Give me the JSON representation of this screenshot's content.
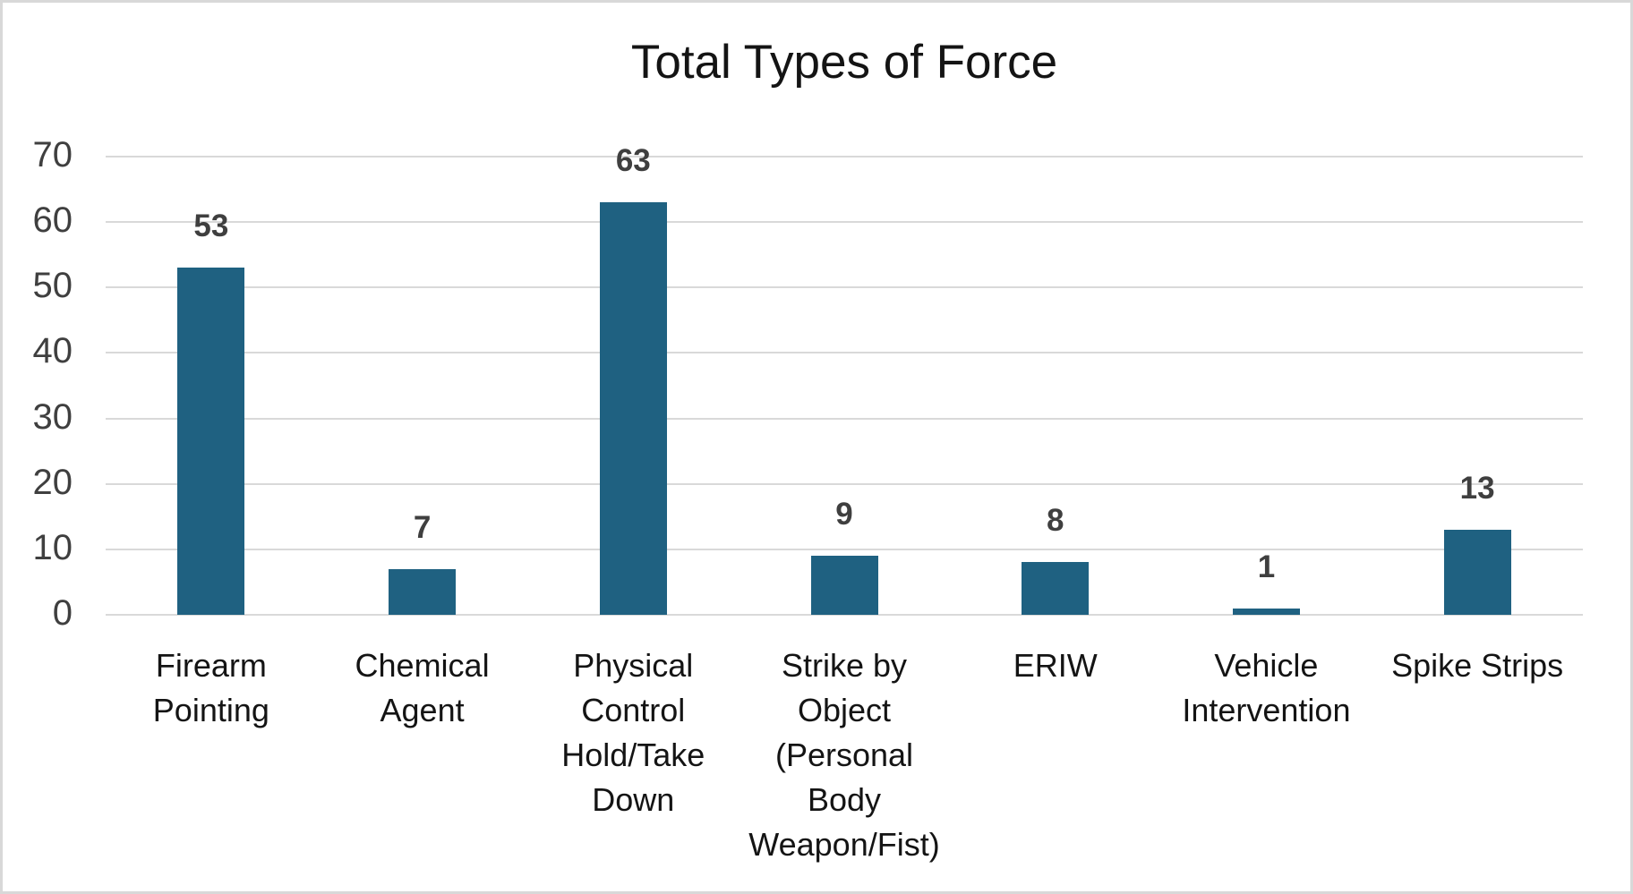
{
  "chart_data": {
    "type": "bar",
    "title": "Total Types of Force",
    "categories": [
      "Firearm Pointing",
      "Chemical Agent",
      "Physical Control Hold/Take Down",
      "Strike by Object (Personal Body Weapon/Fist)",
      "ERIW",
      "Vehicle Intervention",
      "Spike Strips"
    ],
    "category_display_lines": [
      "Firearm\nPointing",
      "Chemical\nAgent",
      "Physical\nControl\nHold/Take\nDown",
      "Strike by\nObject\n(Personal\nBody\nWeapon/Fist)",
      "ERIW",
      "Vehicle\nIntervention",
      "Spike Strips"
    ],
    "values": [
      53,
      7,
      63,
      9,
      8,
      1,
      13
    ],
    "data_labels": [
      "53",
      "7",
      "63",
      "9",
      "8",
      "1",
      "13"
    ],
    "xlabel": "",
    "ylabel": "",
    "ylim": [
      0,
      70
    ],
    "yticks": [
      0,
      10,
      20,
      30,
      40,
      50,
      60,
      70
    ],
    "grid": true,
    "legend_position": "none",
    "colors": {
      "bar": "#1f6181",
      "gridline": "#d9d9d9",
      "tick_label": "#3f3f3f",
      "data_label": "#3f3f3f",
      "category_label": "#141414",
      "title": "#141414",
      "frame_border": "#d8d8d8",
      "background": "#ffffff"
    }
  }
}
